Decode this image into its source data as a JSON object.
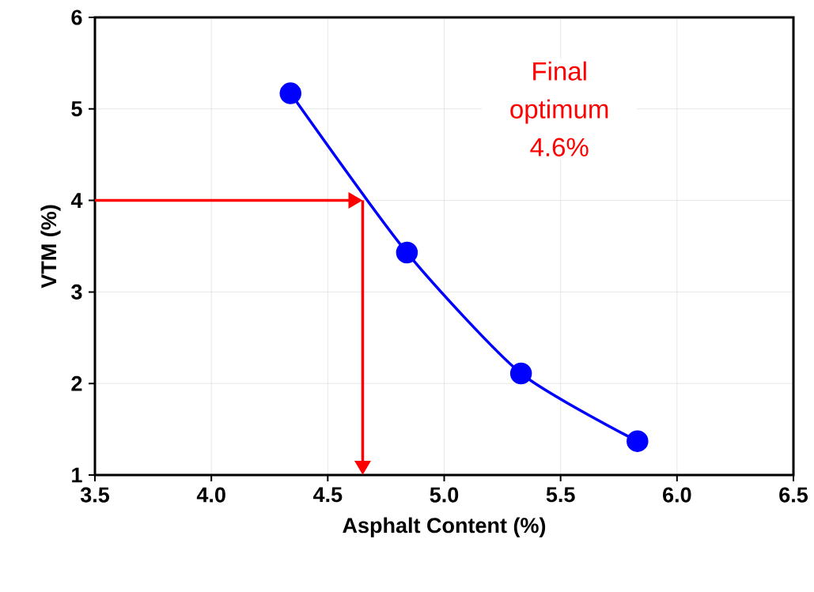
{
  "chart_data": {
    "type": "line",
    "xlabel": "Asphalt Content (%)",
    "ylabel": "VTM (%)",
    "x": [
      4.34,
      4.84,
      5.33,
      5.83
    ],
    "series": [
      {
        "color": "#0000ff",
        "values": [
          5.17,
          3.43,
          2.11,
          1.37
        ]
      }
    ],
    "xlim": [
      3.5,
      6.5
    ],
    "ylim": [
      1,
      6
    ],
    "xticks": [
      3.5,
      {
        "value": 4,
        "label": "4.0"
      },
      4.5,
      {
        "value": 5,
        "label": "5.0"
      },
      5.5,
      {
        "value": 6,
        "label": "6.0"
      },
      6.5
    ],
    "yticks": [
      1,
      2,
      3,
      4,
      5,
      6
    ],
    "grid": true,
    "marker": "circle",
    "line_style": "solid",
    "legend": false,
    "ref_lines": [
      {
        "axis": "y",
        "value": 4,
        "color": "#ff0000"
      },
      {
        "axis": "x",
        "value": 4.65,
        "color": "#ff0000"
      }
    ],
    "annotations": [
      "Final optimum 4.6%"
    ]
  }
}
